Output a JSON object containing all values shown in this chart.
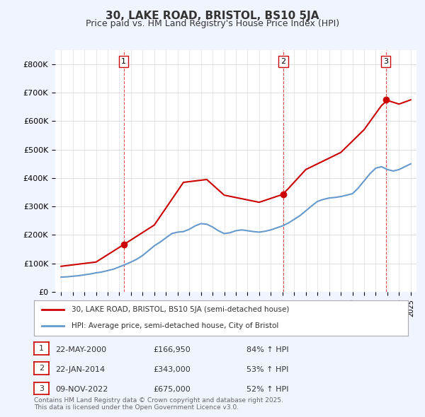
{
  "title": "30, LAKE ROAD, BRISTOL, BS10 5JA",
  "subtitle": "Price paid vs. HM Land Registry's House Price Index (HPI)",
  "bg_color": "#f0f4ff",
  "plot_bg_color": "#ffffff",
  "red_color": "#cc0000",
  "blue_color": "#6699cc",
  "dashed_color": "#cc0000",
  "sale_dates": [
    "2000-05-22",
    "2014-01-22",
    "2022-11-09"
  ],
  "sale_prices": [
    166950,
    343000,
    675000
  ],
  "sale_labels": [
    "1",
    "2",
    "3"
  ],
  "legend_entries": [
    "30, LAKE ROAD, BRISTOL, BS10 5JA (semi-detached house)",
    "HPI: Average price, semi-detached house, City of Bristol"
  ],
  "table_rows": [
    [
      "1",
      "22-MAY-2000",
      "£166,950",
      "84% ↑ HPI"
    ],
    [
      "2",
      "22-JAN-2014",
      "£343,000",
      "53% ↑ HPI"
    ],
    [
      "3",
      "09-NOV-2022",
      "£675,000",
      "52% ↑ HPI"
    ]
  ],
  "footer": "Contains HM Land Registry data © Crown copyright and database right 2025.\nThis data is licensed under the Open Government Licence v3.0.",
  "ylim": [
    0,
    850000
  ],
  "yticks": [
    0,
    100000,
    200000,
    300000,
    400000,
    500000,
    600000,
    700000,
    800000
  ],
  "ytick_labels": [
    "£0",
    "£100K",
    "£200K",
    "£300K",
    "£400K",
    "£500K",
    "£600K",
    "£700K",
    "£800K"
  ]
}
